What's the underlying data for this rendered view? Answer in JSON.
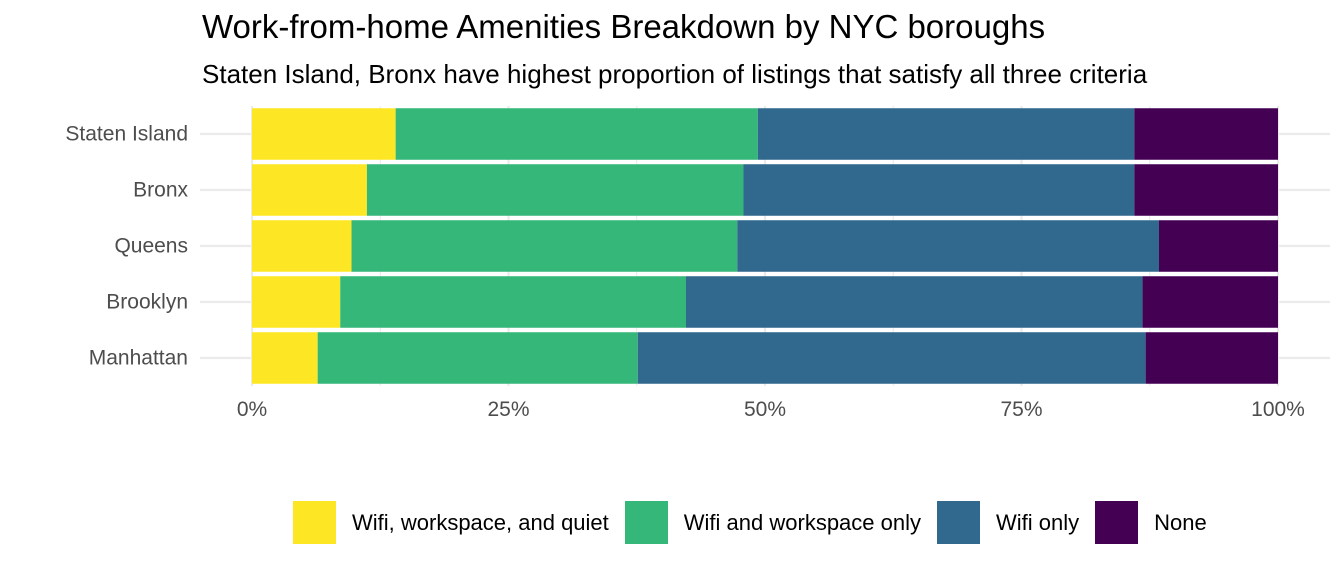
{
  "title": "Work-from-home Amenities Breakdown by NYC boroughs",
  "subtitle": "Staten Island, Bronx have highest proportion of listings that satisfy all three criteria",
  "colors": {
    "Wifi, workspace, and quiet": "#FDE725",
    "Wifi and workspace only": "#35B779",
    "Wifi only": "#31688E",
    "None": "#440154"
  },
  "chart_data": {
    "type": "bar",
    "orientation": "horizontal",
    "stacked": "percent",
    "categories": [
      "Staten Island",
      "Bronx",
      "Queens",
      "Brooklyn",
      "Manhattan"
    ],
    "series": [
      {
        "name": "Wifi, workspace, and quiet",
        "values": [
          14.0,
          11.2,
          9.7,
          8.6,
          6.4
        ]
      },
      {
        "name": "Wifi and workspace only",
        "values": [
          35.3,
          36.7,
          37.6,
          33.7,
          31.2
        ]
      },
      {
        "name": "Wifi only",
        "values": [
          36.7,
          38.1,
          41.1,
          44.5,
          49.5
        ]
      },
      {
        "name": "None",
        "values": [
          14.0,
          14.0,
          11.6,
          13.2,
          12.9
        ]
      }
    ],
    "x_ticks": [
      "0%",
      "25%",
      "50%",
      "75%",
      "100%"
    ],
    "xlim": [
      0,
      100
    ],
    "grid": true,
    "legend_position": "bottom"
  }
}
